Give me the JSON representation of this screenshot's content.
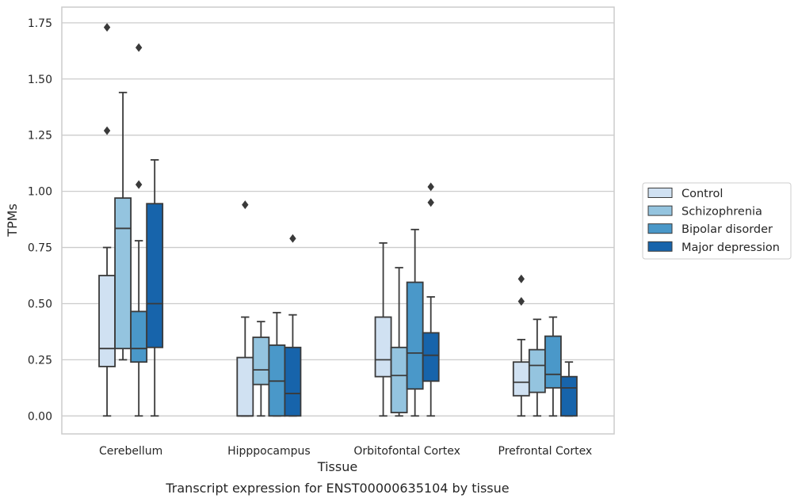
{
  "chart_data": {
    "type": "box",
    "title": "Transcript expression for ENST00000635104 by tissue",
    "xlabel": "Tissue",
    "ylabel": "TPMs",
    "ylim": [
      -0.08,
      1.82
    ],
    "yticks": [
      "0.00",
      "0.25",
      "0.50",
      "0.75",
      "1.00",
      "1.25",
      "1.50",
      "1.75"
    ],
    "grid": "horizontal",
    "legend_position": "right",
    "categories": [
      "Cerebellum",
      "Hipppocampus",
      "Orbitofontal Cortex",
      "Prefrontal Cortex"
    ],
    "series": [
      {
        "name": "Control",
        "color": "#d0e1f2",
        "boxes": [
          {
            "whisker_low": 0.0,
            "q1": 0.22,
            "median": 0.3,
            "q3": 0.625,
            "whisker_high": 0.75,
            "outliers": [
              1.27,
              1.73
            ]
          },
          {
            "whisker_low": 0.0,
            "q1": 0.0,
            "median": 0.0,
            "q3": 0.26,
            "whisker_high": 0.44,
            "outliers": [
              0.94
            ]
          },
          {
            "whisker_low": 0.0,
            "q1": 0.175,
            "median": 0.25,
            "q3": 0.44,
            "whisker_high": 0.77,
            "outliers": []
          },
          {
            "whisker_low": 0.0,
            "q1": 0.09,
            "median": 0.15,
            "q3": 0.24,
            "whisker_high": 0.34,
            "outliers": [
              0.51,
              0.61
            ]
          }
        ]
      },
      {
        "name": "Schizophrenia",
        "color": "#94c4df",
        "boxes": [
          {
            "whisker_low": 0.25,
            "q1": 0.3,
            "median": 0.835,
            "q3": 0.97,
            "whisker_high": 1.44,
            "outliers": []
          },
          {
            "whisker_low": 0.0,
            "q1": 0.14,
            "median": 0.205,
            "q3": 0.35,
            "whisker_high": 0.42,
            "outliers": []
          },
          {
            "whisker_low": 0.0,
            "q1": 0.015,
            "median": 0.18,
            "q3": 0.305,
            "whisker_high": 0.66,
            "outliers": []
          },
          {
            "whisker_low": 0.0,
            "q1": 0.105,
            "median": 0.225,
            "q3": 0.295,
            "whisker_high": 0.43,
            "outliers": []
          }
        ]
      },
      {
        "name": "Bipolar disorder",
        "color": "#4a98c9",
        "boxes": [
          {
            "whisker_low": 0.0,
            "q1": 0.24,
            "median": 0.3,
            "q3": 0.465,
            "whisker_high": 0.78,
            "outliers": [
              1.03,
              1.64
            ]
          },
          {
            "whisker_low": 0.0,
            "q1": 0.0,
            "median": 0.155,
            "q3": 0.315,
            "whisker_high": 0.46,
            "outliers": []
          },
          {
            "whisker_low": 0.0,
            "q1": 0.12,
            "median": 0.28,
            "q3": 0.595,
            "whisker_high": 0.83,
            "outliers": []
          },
          {
            "whisker_low": 0.0,
            "q1": 0.125,
            "median": 0.185,
            "q3": 0.355,
            "whisker_high": 0.44,
            "outliers": []
          }
        ]
      },
      {
        "name": "Major depression",
        "color": "#1764ab",
        "boxes": [
          {
            "whisker_low": 0.0,
            "q1": 0.305,
            "median": 0.5,
            "q3": 0.945,
            "whisker_high": 1.14,
            "outliers": []
          },
          {
            "whisker_low": 0.0,
            "q1": 0.0,
            "median": 0.1,
            "q3": 0.305,
            "whisker_high": 0.45,
            "outliers": [
              0.79
            ]
          },
          {
            "whisker_low": 0.0,
            "q1": 0.155,
            "median": 0.27,
            "q3": 0.37,
            "whisker_high": 0.53,
            "outliers": [
              0.95,
              1.02
            ]
          },
          {
            "whisker_low": 0.0,
            "q1": 0.0,
            "median": 0.125,
            "q3": 0.175,
            "whisker_high": 0.24,
            "outliers": []
          }
        ]
      }
    ]
  }
}
